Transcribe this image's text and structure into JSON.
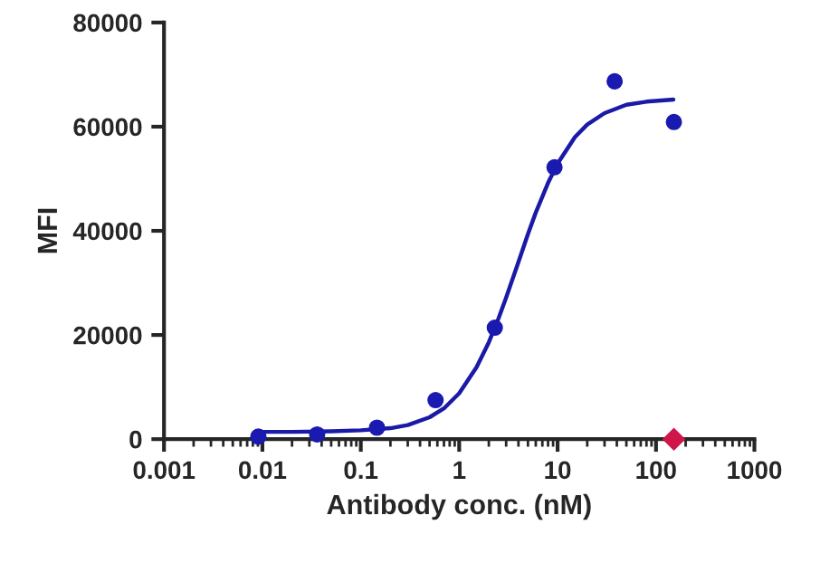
{
  "chart_data": {
    "type": "scatter",
    "xlabel": "Antibody conc. (nM)",
    "ylabel": "MFI",
    "log": "x",
    "xlim": [
      0.001,
      1000
    ],
    "xticks": [
      {
        "value": 0.001,
        "label": "0.001"
      },
      {
        "value": 0.01,
        "label": "0.01"
      },
      {
        "value": 0.1,
        "label": "0.1"
      },
      {
        "value": 1,
        "label": "1"
      },
      {
        "value": 10,
        "label": "10"
      },
      {
        "value": 100,
        "label": "100"
      },
      {
        "value": 1000,
        "label": "1000"
      }
    ],
    "ylim": [
      0,
      80000
    ],
    "yticks": [
      0,
      20000,
      40000,
      60000,
      80000
    ],
    "grid": false,
    "legend": false,
    "series": [
      {
        "type": "line",
        "color": "#1a1aa6",
        "marker": "none",
        "line_style": "solid",
        "x": [
          0.0095,
          0.02,
          0.05,
          0.1,
          0.2,
          0.3,
          0.5,
          0.7,
          1,
          1.5,
          2,
          2.5,
          3,
          4,
          5,
          6,
          8,
          10,
          15,
          20,
          30,
          50,
          80,
          150
        ],
        "values": [
          1400,
          1400,
          1500,
          1700,
          2100,
          2700,
          4200,
          5900,
          8800,
          13800,
          18600,
          23100,
          27200,
          34000,
          39400,
          43500,
          49200,
          52900,
          58000,
          60400,
          62600,
          64200,
          64800,
          65200
        ]
      },
      {
        "color": "#1a1ab0",
        "marker": "circle",
        "x": [
          0.0091,
          0.036,
          0.146,
          0.575,
          2.3,
          9.3,
          38,
          152
        ],
        "values": [
          500,
          900,
          2200,
          7500,
          21400,
          52200,
          68700,
          60900
        ]
      },
      {
        "color": "#d0154a",
        "marker": "diamond",
        "x": [
          152
        ],
        "values": [
          0
        ]
      }
    ]
  }
}
